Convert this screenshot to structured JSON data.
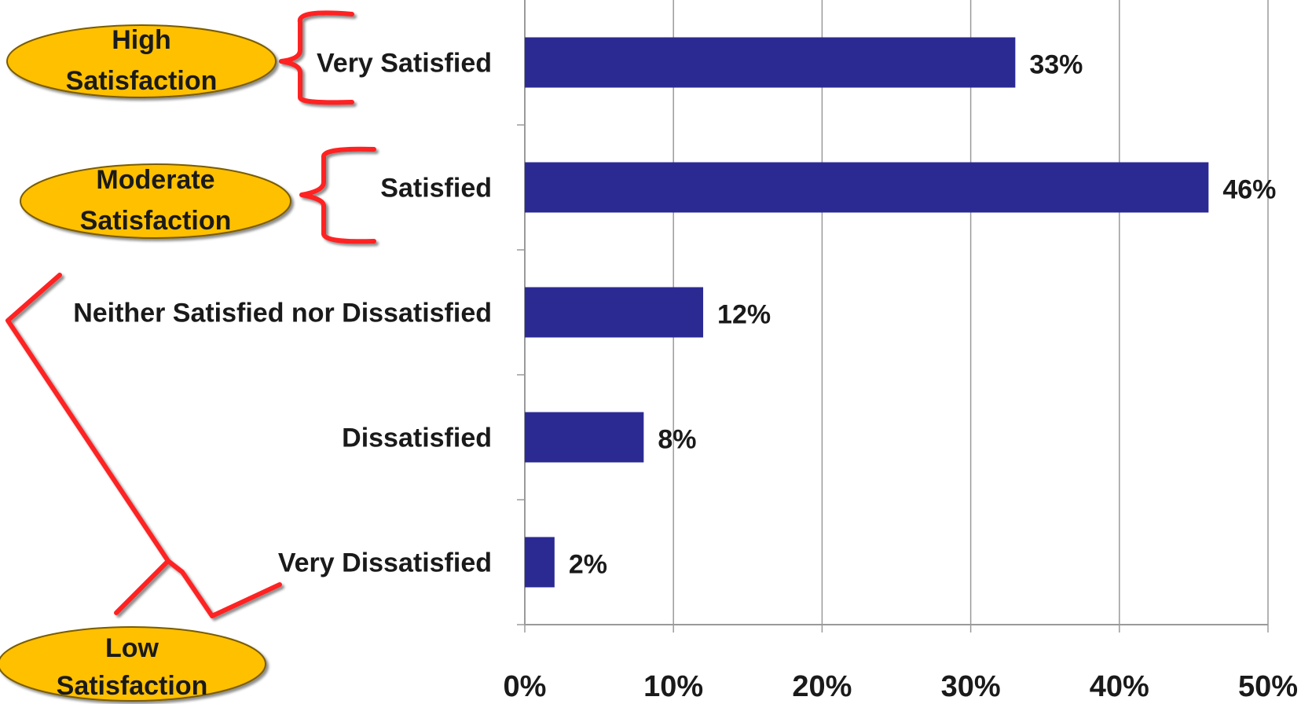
{
  "chart_data": {
    "type": "bar",
    "orientation": "horizontal",
    "categories": [
      "Very Satisfied",
      "Satisfied",
      "Neither Satisfied nor Dissatisfied",
      "Dissatisfied",
      "Very Dissatisfied"
    ],
    "values": [
      33,
      46,
      12,
      8,
      2
    ],
    "value_labels": [
      "33%",
      "46%",
      "12%",
      "8%",
      "2%"
    ],
    "xlim": [
      0,
      50
    ],
    "x_ticks": [
      0,
      10,
      20,
      30,
      40,
      50
    ],
    "x_tick_labels": [
      "0%",
      "10%",
      "20%",
      "30%",
      "40%",
      "50%"
    ],
    "grid": "vertical",
    "bar_color": "#2b2a93",
    "annotations": [
      {
        "lines": [
          "High",
          "Satisfaction"
        ],
        "groups": [
          "Very Satisfied"
        ]
      },
      {
        "lines": [
          "Moderate",
          "Satisfaction"
        ],
        "groups": [
          "Satisfied"
        ]
      },
      {
        "lines": [
          "Low",
          "Satisfaction"
        ],
        "groups": [
          "Neither Satisfied nor Dissatisfied",
          "Dissatisfied",
          "Very Dissatisfied"
        ]
      }
    ]
  },
  "colors": {
    "bar": "#2b2a93",
    "bracket": "#ff2020",
    "bubble_fill": "#ffc000",
    "bubble_stroke": "#7a5c00",
    "grid": "#9a9a9a",
    "text": "#1a1a1a"
  }
}
